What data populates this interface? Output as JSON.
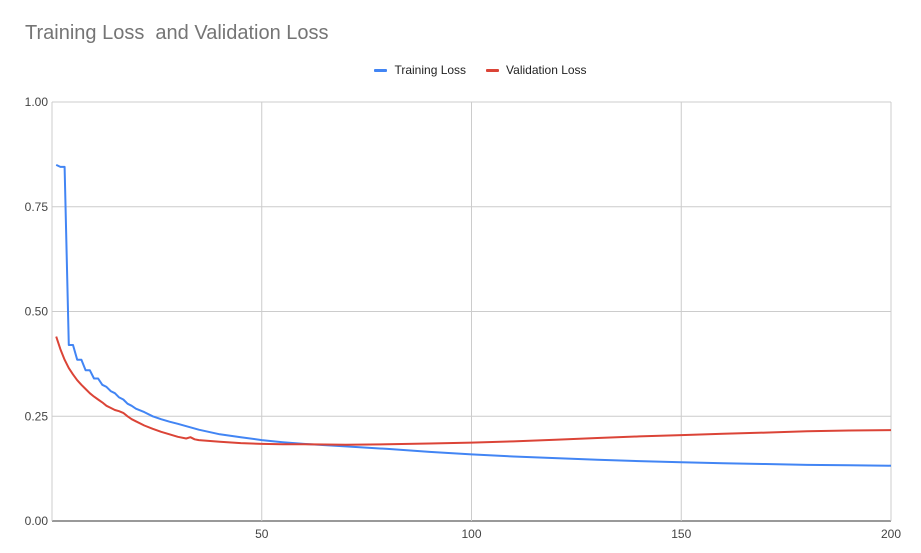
{
  "chart_data": {
    "type": "line",
    "title": "Training Loss  and Validation Loss",
    "xlabel": "",
    "ylabel": "",
    "xlim": [
      0,
      200
    ],
    "ylim": [
      0,
      1
    ],
    "grid": true,
    "legend_position": "top",
    "x_ticks": [
      "50",
      "100",
      "150",
      "200"
    ],
    "y_ticks": [
      "1.00",
      "0.75",
      "0.50",
      "0.25",
      "0.00"
    ],
    "series": [
      {
        "name": "Training Loss",
        "color": "#4285f4",
        "x": [
          1,
          2,
          3,
          4,
          5,
          6,
          7,
          8,
          9,
          10,
          11,
          12,
          13,
          14,
          15,
          16,
          17,
          18,
          19,
          20,
          22,
          24,
          26,
          28,
          30,
          35,
          40,
          45,
          50,
          55,
          60,
          70,
          80,
          90,
          100,
          110,
          120,
          130,
          140,
          150,
          160,
          170,
          180,
          190,
          200
        ],
        "values": [
          0.85,
          0.845,
          0.845,
          0.42,
          0.42,
          0.385,
          0.385,
          0.36,
          0.36,
          0.34,
          0.34,
          0.325,
          0.32,
          0.31,
          0.305,
          0.295,
          0.29,
          0.28,
          0.275,
          0.268,
          0.26,
          0.25,
          0.243,
          0.237,
          0.232,
          0.218,
          0.207,
          0.2,
          0.193,
          0.188,
          0.184,
          0.178,
          0.172,
          0.165,
          0.159,
          0.154,
          0.15,
          0.146,
          0.143,
          0.14,
          0.138,
          0.136,
          0.134,
          0.133,
          0.132
        ]
      },
      {
        "name": "Validation Loss",
        "color": "#db4437",
        "x": [
          1,
          2,
          3,
          4,
          5,
          6,
          7,
          8,
          9,
          10,
          11,
          12,
          13,
          14,
          15,
          16,
          17,
          18,
          19,
          20,
          22,
          24,
          26,
          28,
          30,
          32,
          33,
          34,
          35,
          40,
          45,
          50,
          55,
          60,
          70,
          80,
          90,
          100,
          110,
          120,
          130,
          140,
          150,
          160,
          170,
          180,
          190,
          200
        ],
        "values": [
          0.44,
          0.41,
          0.385,
          0.365,
          0.35,
          0.336,
          0.325,
          0.315,
          0.305,
          0.297,
          0.29,
          0.283,
          0.275,
          0.27,
          0.265,
          0.262,
          0.258,
          0.25,
          0.243,
          0.238,
          0.228,
          0.22,
          0.213,
          0.207,
          0.201,
          0.197,
          0.2,
          0.195,
          0.193,
          0.189,
          0.186,
          0.184,
          0.183,
          0.183,
          0.182,
          0.183,
          0.185,
          0.187,
          0.19,
          0.194,
          0.198,
          0.202,
          0.205,
          0.208,
          0.211,
          0.214,
          0.216,
          0.217
        ]
      }
    ]
  }
}
